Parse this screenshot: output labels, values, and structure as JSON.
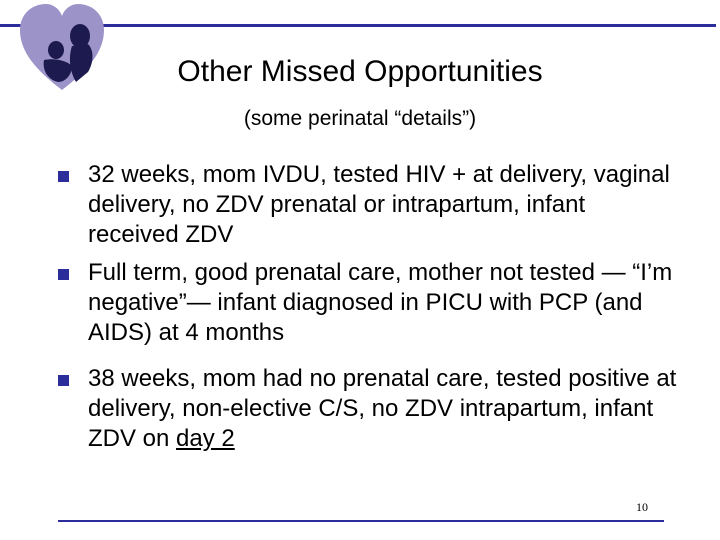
{
  "slide": {
    "title": "Other Missed Opportunities",
    "subtitle": "(some perinatal “details”)",
    "bullets": [
      {
        "text": "32 weeks, mom IVDU, tested HIV + at delivery, vaginal delivery, no ZDV prenatal or intrapartum, infant received ZDV"
      },
      {
        "text": "Full term, good prenatal care, mother not tested — “I’m negative”— infant diagnosed in PICU with PCP (and AIDS) at 4 months"
      },
      {
        "text_before": "38 weeks, mom had no prenatal care, tested positive at delivery, non-elective C/S, no ZDV intrapartum, infant ZDV on ",
        "text_underlined": "day 2"
      }
    ],
    "page_number": "10"
  },
  "colors": {
    "accent": "#2a2d9a",
    "logo_heart": "#9c93c9",
    "logo_figures": "#1c1a4e"
  },
  "icons": {
    "logo": "heart-mother-child-logo-icon",
    "bullet": "square-bullet-icon"
  }
}
